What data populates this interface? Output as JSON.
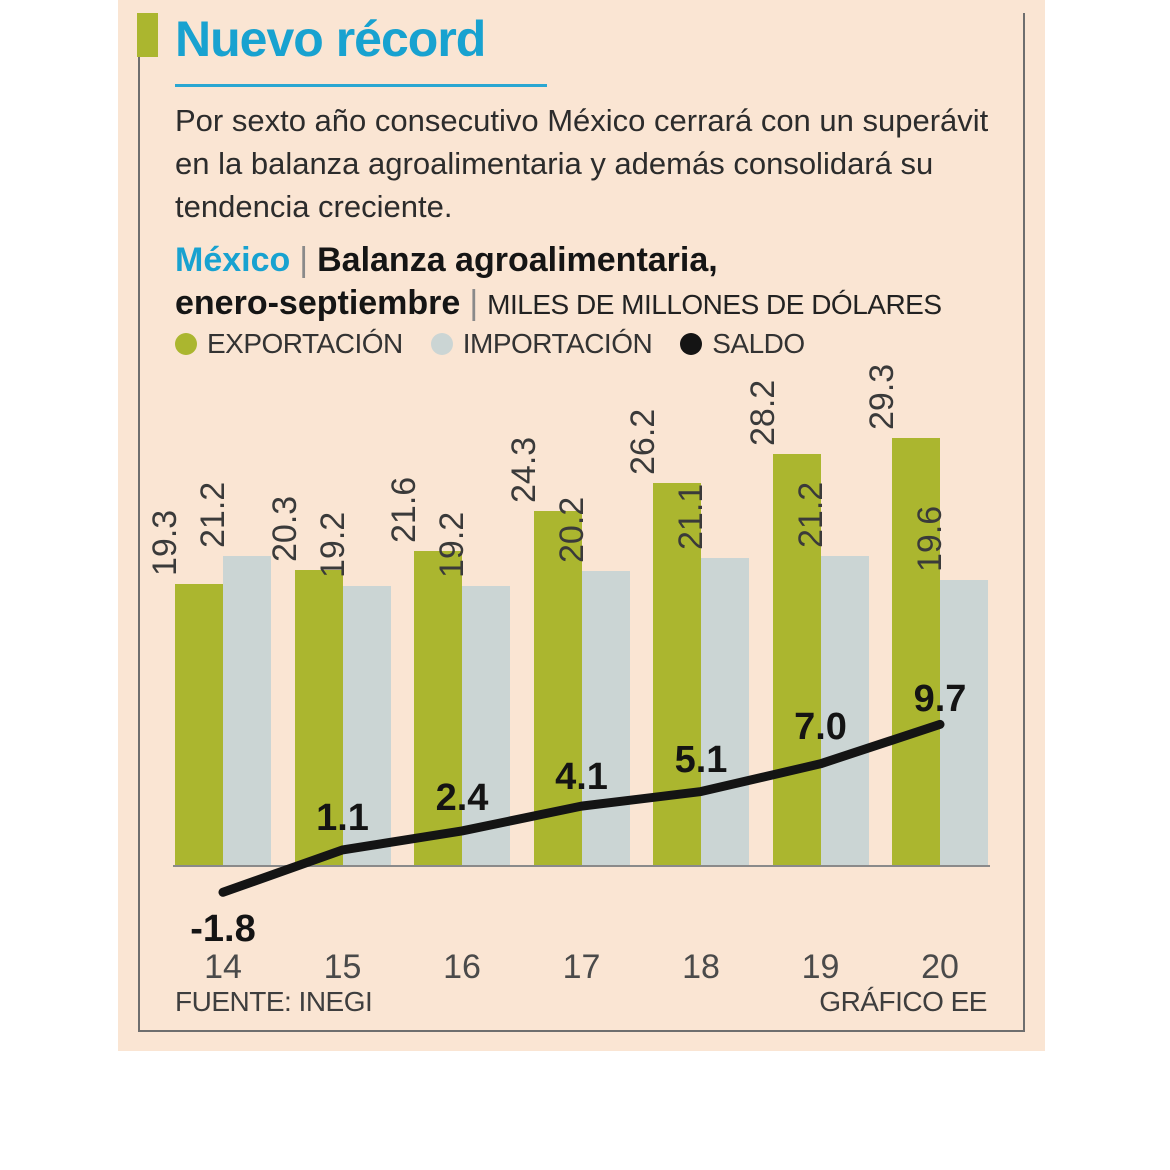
{
  "header": {
    "title": "Nuevo récord",
    "intro_line1": "Por sexto año consecutivo México cerrará con un superávit",
    "intro_line2": "en la balanza agroalimentaria y además consolidará su",
    "intro_line3": "tendencia creciente."
  },
  "subtitle": {
    "region": "México",
    "separator": "|",
    "main": "Balanza agroalimentaria,",
    "period": "enero-septiembre",
    "units": "MILES DE MILLONES DE DÓLARES"
  },
  "legend": {
    "export_label": "EXPORTACIÓN",
    "import_label": "IMPORTACIÓN",
    "saldo_label": "SALDO"
  },
  "footer": {
    "source": "FUENTE: INEGI",
    "credit": "GRÁFICO EE"
  },
  "colors": {
    "background": "#fae5d3",
    "accent_cyan": "#18a2d0",
    "underline_cyan": "#2aa7d2",
    "export_green": "#abb62f",
    "import_gray": "#cbd5d4",
    "saldo_black": "#141414"
  },
  "chart_data": {
    "type": "bar",
    "title": "México | Balanza agroalimentaria, enero-septiembre",
    "units": "MILES DE MILLONES DE DÓLARES",
    "categories": [
      "14",
      "15",
      "16",
      "17",
      "18",
      "19",
      "20"
    ],
    "series": [
      {
        "name": "EXPORTACIÓN",
        "type": "bar",
        "values": [
          19.3,
          20.3,
          21.6,
          24.3,
          26.2,
          28.2,
          29.3
        ]
      },
      {
        "name": "IMPORTACIÓN",
        "type": "bar",
        "values": [
          21.2,
          19.2,
          19.2,
          20.2,
          21.1,
          21.2,
          19.6
        ]
      },
      {
        "name": "SALDO",
        "type": "line",
        "values": [
          -1.8,
          1.1,
          2.4,
          4.1,
          5.1,
          7.0,
          9.7
        ]
      }
    ],
    "value_label_format": "one_decimal",
    "legend_position": "top",
    "grid": false,
    "source": "FUENTE: INEGI",
    "credit": "GRÁFICO EE"
  }
}
